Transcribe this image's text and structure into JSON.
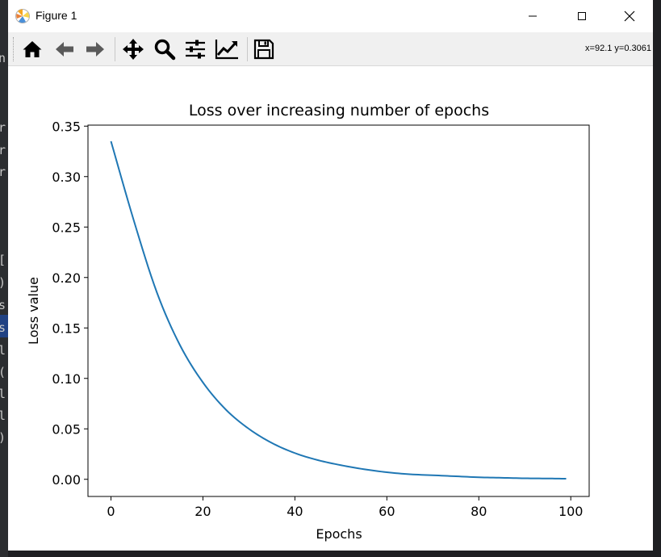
{
  "window": {
    "title": "Figure 1"
  },
  "toolbar": {
    "buttons": [
      "home-icon",
      "back-arrow-icon",
      "forward-arrow-icon",
      "pan-icon",
      "zoom-icon",
      "configure-subplots-icon",
      "edit-axis-icon",
      "save-icon"
    ],
    "coords": "x=92.1 y=0.3061"
  },
  "editor_fragment": {
    "chars": [
      "n",
      "r",
      "r",
      "r",
      "[",
      ")",
      "s",
      "s",
      "l",
      "(",
      "l",
      "l",
      ")"
    ]
  },
  "chart_data": {
    "type": "line",
    "title": "Loss over increasing number of epochs",
    "xlabel": "Epochs",
    "ylabel": "Loss value",
    "xlim": [
      -5,
      104
    ],
    "ylim": [
      -0.017,
      0.351
    ],
    "xticks": [
      0,
      20,
      40,
      60,
      80,
      100
    ],
    "xtick_labels": [
      "0",
      "20",
      "40",
      "60",
      "80",
      "100"
    ],
    "yticks": [
      0.0,
      0.05,
      0.1,
      0.15,
      0.2,
      0.25,
      0.3,
      0.35
    ],
    "ytick_labels": [
      "0.00",
      "0.05",
      "0.10",
      "0.15",
      "0.20",
      "0.25",
      "0.30",
      "0.35"
    ],
    "grid": false,
    "color": "#1f77b4",
    "series": [
      {
        "x": [
          0,
          5,
          10,
          15,
          20,
          25,
          30,
          35,
          40,
          45,
          50,
          55,
          60,
          65,
          70,
          75,
          80,
          85,
          90,
          95,
          99
        ],
        "values": [
          0.335,
          0.256,
          0.185,
          0.133,
          0.096,
          0.069,
          0.05,
          0.036,
          0.026,
          0.019,
          0.014,
          0.01,
          0.007,
          0.005,
          0.004,
          0.003,
          0.002,
          0.0015,
          0.001,
          0.0008,
          0.0006
        ]
      }
    ]
  }
}
